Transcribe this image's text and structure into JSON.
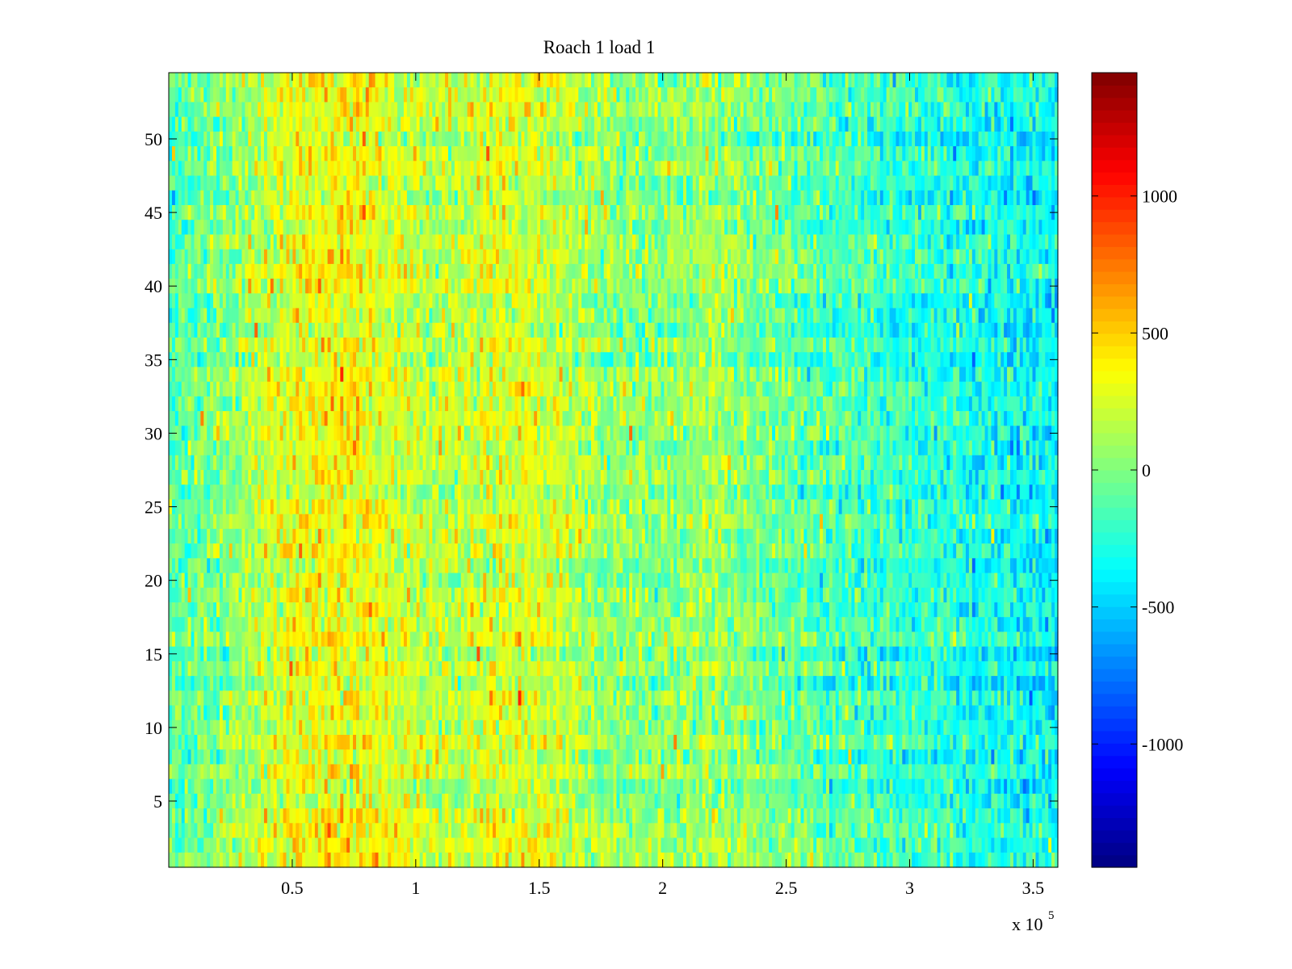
{
  "chart_data": {
    "type": "heatmap",
    "title": "Roach 1 load 1",
    "xlabel": "",
    "ylabel": "",
    "x_multiplier": "x 10",
    "x_multiplier_exp": "5",
    "xlim": [
      0,
      360000
    ],
    "ylim": [
      0.5,
      54.5
    ],
    "x_ticks": [
      {
        "value": 50000,
        "label": "0.5"
      },
      {
        "value": 100000,
        "label": "1"
      },
      {
        "value": 150000,
        "label": "1.5"
      },
      {
        "value": 200000,
        "label": "2"
      },
      {
        "value": 250000,
        "label": "2.5"
      },
      {
        "value": 300000,
        "label": "3"
      },
      {
        "value": 350000,
        "label": "3.5"
      }
    ],
    "y_ticks": [
      {
        "value": 5,
        "label": "5"
      },
      {
        "value": 10,
        "label": "10"
      },
      {
        "value": 15,
        "label": "15"
      },
      {
        "value": 20,
        "label": "20"
      },
      {
        "value": 25,
        "label": "25"
      },
      {
        "value": 30,
        "label": "30"
      },
      {
        "value": 35,
        "label": "35"
      },
      {
        "value": 40,
        "label": "40"
      },
      {
        "value": 45,
        "label": "45"
      },
      {
        "value": 50,
        "label": "50"
      }
    ],
    "colorbar": {
      "colormap": "jet",
      "clim": [
        -1450,
        1450
      ],
      "ticks": [
        {
          "value": 1000,
          "label": "1000"
        },
        {
          "value": 500,
          "label": "500"
        },
        {
          "value": 0,
          "label": "0"
        },
        {
          "value": -500,
          "label": "-500"
        },
        {
          "value": -1000,
          "label": "-1000"
        }
      ]
    },
    "rows": 54,
    "x_profile": {
      "x": [
        0,
        20000,
        40000,
        55000,
        70000,
        80000,
        90000,
        105000,
        120000,
        135000,
        150000,
        165000,
        180000,
        200000,
        220000,
        240000,
        260000,
        280000,
        300000,
        320000,
        340000,
        360000
      ],
      "mean_value": [
        -150,
        0,
        200,
        320,
        340,
        320,
        260,
        150,
        180,
        270,
        240,
        120,
        40,
        20,
        80,
        -20,
        -120,
        -180,
        -230,
        -280,
        -330,
        -380
      ]
    },
    "notes": ""
  }
}
